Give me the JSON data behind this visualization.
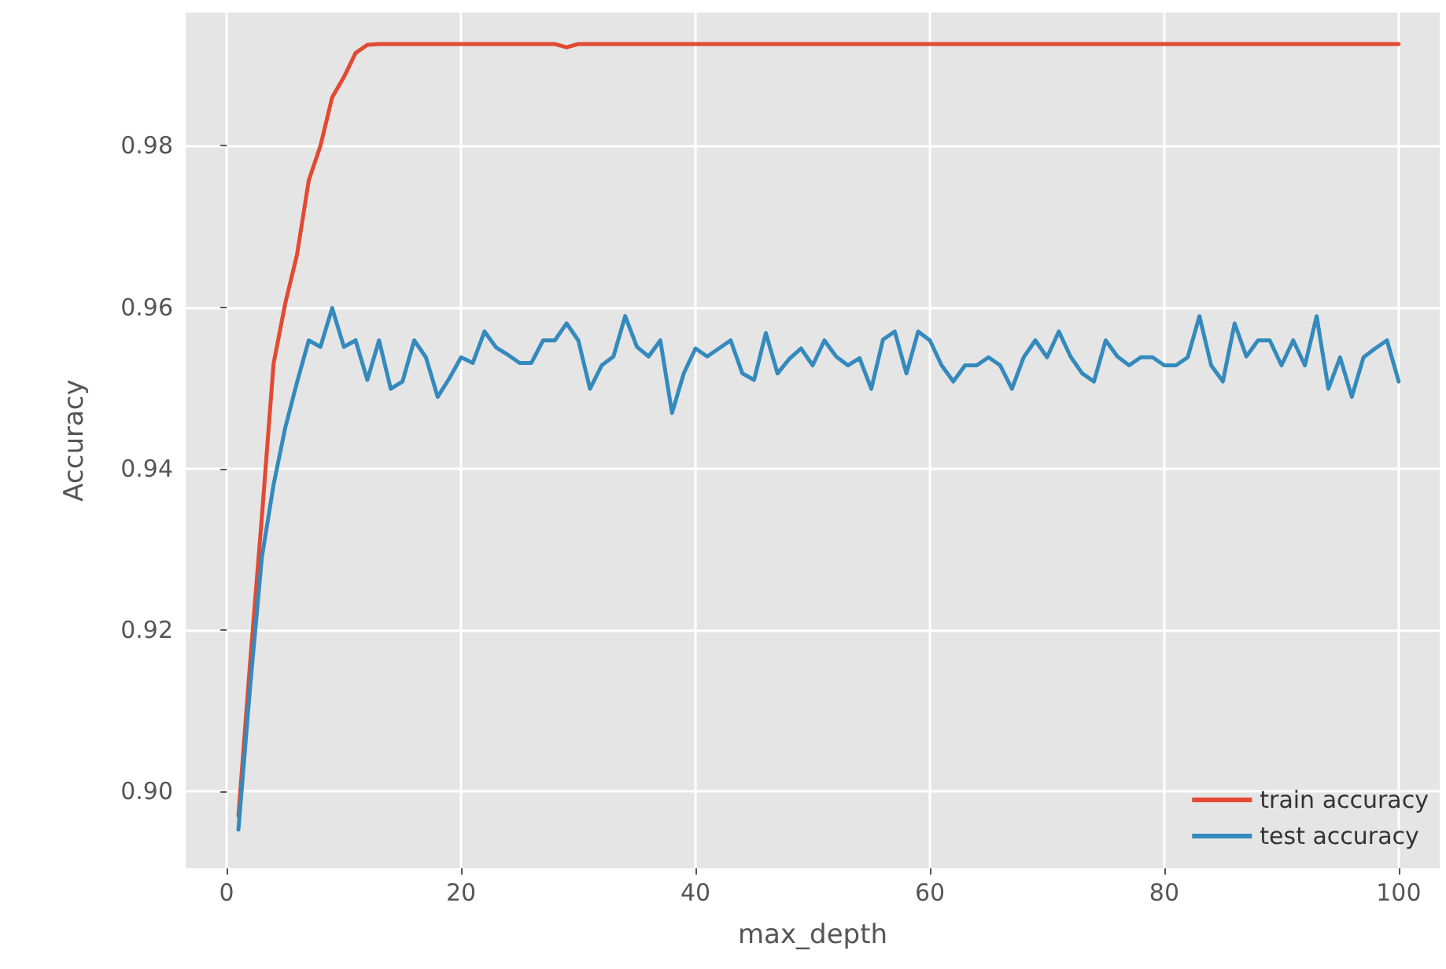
{
  "chart_data": {
    "type": "line",
    "xlabel": "max_depth",
    "ylabel": "Accuracy",
    "xlim": [
      -3.5,
      103.5
    ],
    "xticks": [
      0,
      20,
      40,
      60,
      80,
      100
    ],
    "ylim": [
      0.8905,
      0.9965
    ],
    "yticks": [
      {
        "value": 0.9,
        "label": "0.90"
      },
      0.92,
      0.94,
      0.96,
      0.98
    ],
    "grid": true,
    "legend": "bottom right",
    "marker": "none",
    "line_style": "solid",
    "x": [
      1,
      2,
      3,
      4,
      5,
      6,
      7,
      8,
      9,
      10,
      11,
      12,
      13,
      14,
      15,
      16,
      17,
      18,
      19,
      20,
      21,
      22,
      23,
      24,
      25,
      26,
      27,
      28,
      29,
      30,
      31,
      32,
      33,
      34,
      35,
      36,
      37,
      38,
      39,
      40,
      41,
      42,
      43,
      44,
      45,
      46,
      47,
      48,
      49,
      50,
      51,
      52,
      53,
      54,
      55,
      56,
      57,
      58,
      59,
      60,
      61,
      62,
      63,
      64,
      65,
      66,
      67,
      68,
      69,
      70,
      71,
      72,
      73,
      74,
      75,
      76,
      77,
      78,
      79,
      80,
      81,
      82,
      83,
      84,
      85,
      86,
      87,
      88,
      89,
      90,
      91,
      92,
      93,
      94,
      95,
      96,
      97,
      98,
      99,
      100
    ],
    "series": [
      {
        "name": "train accuracy",
        "color": "#e24a33",
        "values": [
          0.897,
          0.916,
          0.934,
          0.953,
          0.9605,
          0.9665,
          0.9757,
          0.98,
          0.986,
          0.9885,
          0.9915,
          0.9925,
          0.9926,
          0.9926,
          0.9926,
          0.9926,
          0.9926,
          0.9926,
          0.9926,
          0.9926,
          0.9926,
          0.9926,
          0.9926,
          0.9926,
          0.9926,
          0.9926,
          0.9926,
          0.9926,
          0.9922,
          0.9926,
          0.9926,
          0.9926,
          0.9926,
          0.9926,
          0.9926,
          0.9926,
          0.9926,
          0.9926,
          0.9926,
          0.9926,
          0.9926,
          0.9926,
          0.9926,
          0.9926,
          0.9926,
          0.9926,
          0.9926,
          0.9926,
          0.9926,
          0.9926,
          0.9926,
          0.9926,
          0.9926,
          0.9926,
          0.9926,
          0.9926,
          0.9926,
          0.9926,
          0.9926,
          0.9926,
          0.9926,
          0.9926,
          0.9926,
          0.9926,
          0.9926,
          0.9926,
          0.9926,
          0.9926,
          0.9926,
          0.9926,
          0.9926,
          0.9926,
          0.9926,
          0.9926,
          0.9926,
          0.9926,
          0.9926,
          0.9926,
          0.9926,
          0.9926,
          0.9926,
          0.9926,
          0.9926,
          0.9926,
          0.9926,
          0.9926,
          0.9926,
          0.9926,
          0.9926,
          0.9926,
          0.9926,
          0.9926,
          0.9926,
          0.9926,
          0.9926,
          0.9926,
          0.9926,
          0.9926,
          0.9926,
          0.9926
        ]
      },
      {
        "name": "test accuracy",
        "color": "#348abd",
        "values": [
          0.8953,
          0.913,
          0.929,
          0.938,
          0.9451,
          0.9507,
          0.9559,
          0.9551,
          0.9599,
          0.9551,
          0.9559,
          0.951,
          0.9559,
          0.9499,
          0.9508,
          0.9559,
          0.9538,
          0.9489,
          0.9512,
          0.9538,
          0.9531,
          0.957,
          0.955,
          0.9541,
          0.9531,
          0.9531,
          0.9559,
          0.9559,
          0.958,
          0.9559,
          0.9499,
          0.9528,
          0.9539,
          0.9589,
          0.9551,
          0.9539,
          0.9559,
          0.9469,
          0.9518,
          0.9549,
          0.9539,
          0.9549,
          0.9559,
          0.9518,
          0.951,
          0.9568,
          0.9518,
          0.9536,
          0.9549,
          0.9528,
          0.9559,
          0.9539,
          0.9528,
          0.9537,
          0.9499,
          0.956,
          0.957,
          0.9518,
          0.957,
          0.9559,
          0.9528,
          0.9508,
          0.9528,
          0.9528,
          0.9538,
          0.9528,
          0.9499,
          0.9538,
          0.9559,
          0.9538,
          0.957,
          0.9539,
          0.9518,
          0.9508,
          0.9559,
          0.9539,
          0.9528,
          0.9538,
          0.9538,
          0.9528,
          0.9528,
          0.9538,
          0.9589,
          0.9528,
          0.9508,
          0.958,
          0.9539,
          0.9559,
          0.9559,
          0.9528,
          0.9559,
          0.9528,
          0.9589,
          0.9499,
          0.9538,
          0.9489,
          0.9538,
          0.9549,
          0.9559,
          0.9508
        ]
      }
    ]
  }
}
